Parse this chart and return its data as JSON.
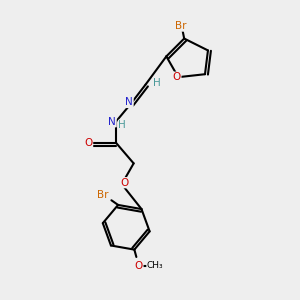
{
  "background_color": "#eeeeee",
  "atom_colors": {
    "C": "#000000",
    "H": "#4a9999",
    "N": "#2222cc",
    "O": "#cc0000",
    "Br": "#cc6600"
  },
  "figsize": [
    3.0,
    3.0
  ],
  "dpi": 100
}
